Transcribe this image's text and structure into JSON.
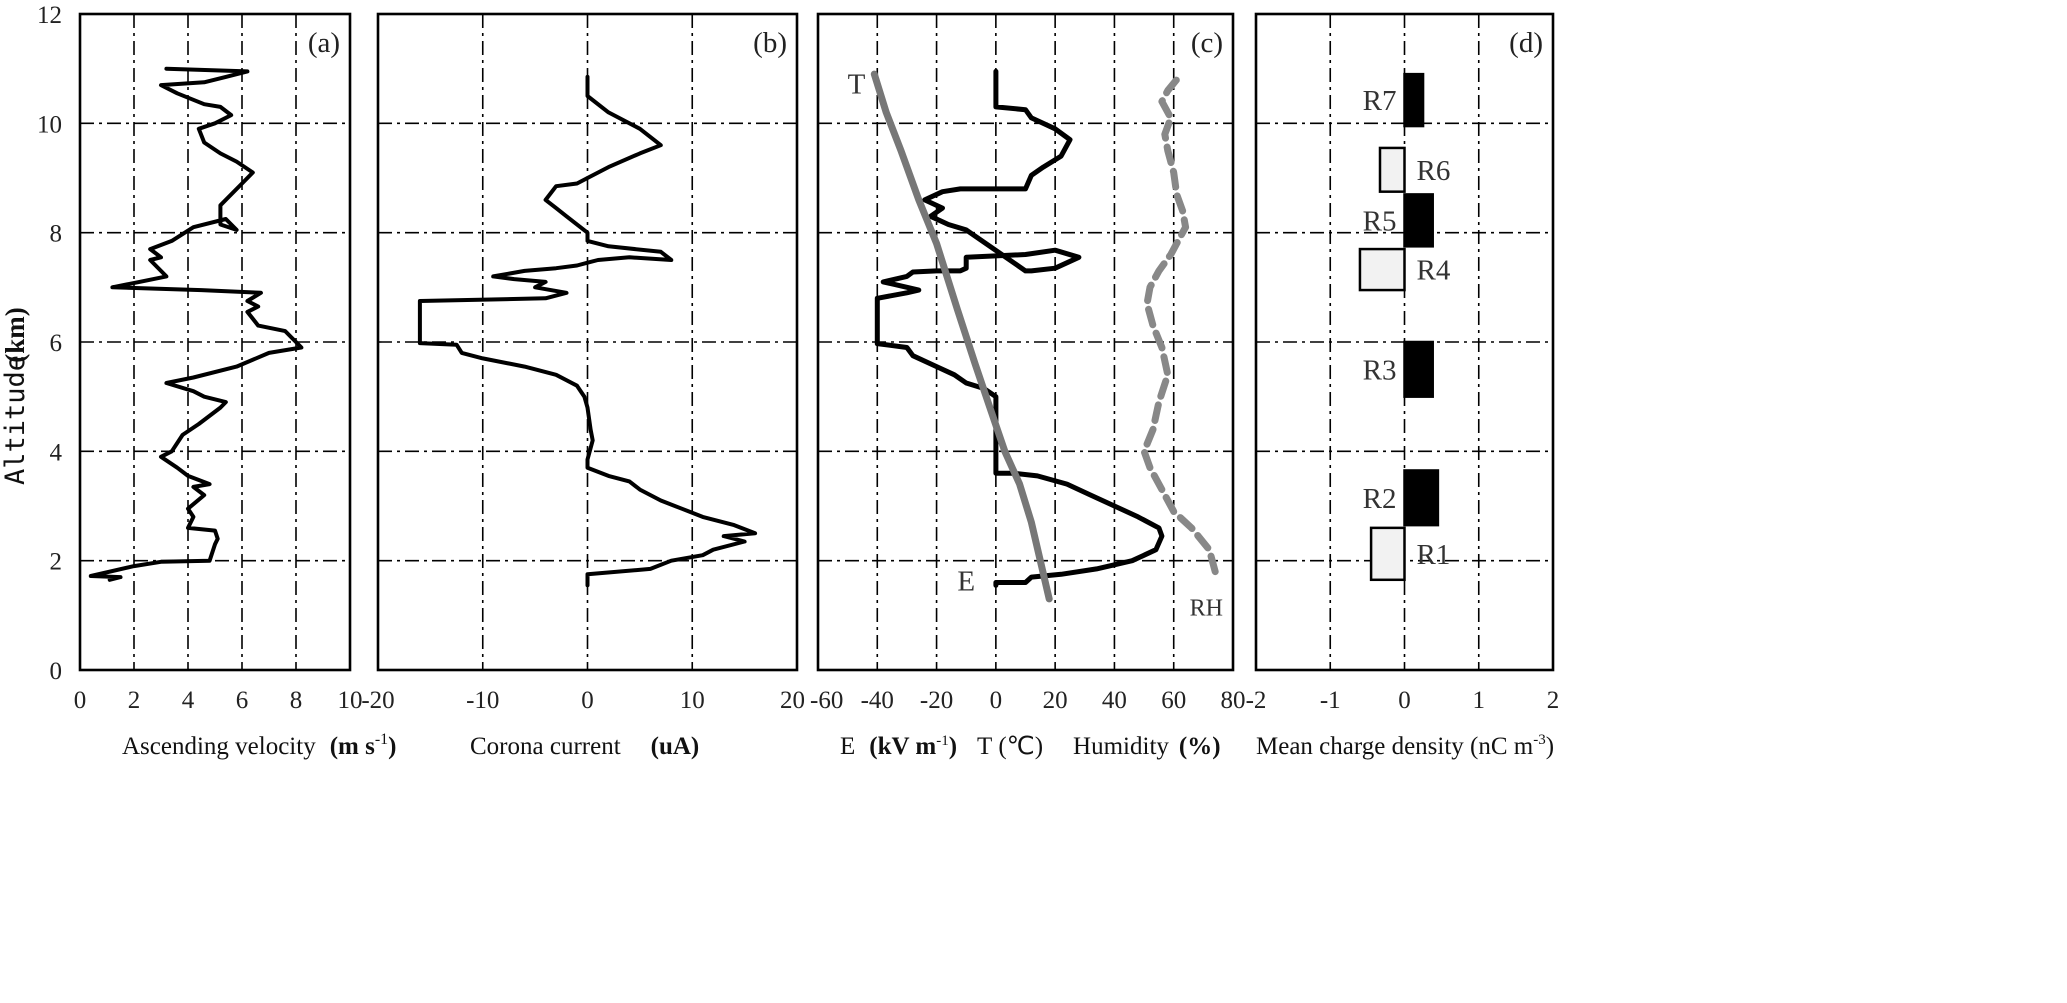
{
  "figure": {
    "y_axis_label": "Altitude",
    "y_axis_unit": "(km)",
    "y_ticks": [
      "0",
      "2",
      "4",
      "6",
      "8",
      "10",
      "12"
    ]
  },
  "chart_data": [
    {
      "panel": "a",
      "tag": "(a)",
      "type": "line",
      "xlabel": "Ascending velocity",
      "xunit_prefix": "(m s",
      "xunit_sup": "-1",
      "xunit_suffix": ")",
      "xlim": [
        0,
        10
      ],
      "ylim": [
        0,
        12
      ],
      "xticks": [
        "0",
        "2",
        "4",
        "6",
        "8",
        "10"
      ],
      "grid": true,
      "series": [
        {
          "x": [
            1.1,
            1.5,
            0.4,
            2.0,
            3.0,
            4.8,
            5.0,
            5.1,
            5.0,
            4.0,
            4.2,
            4.0,
            4.6,
            4.2,
            4.8,
            4.0,
            3.6,
            3.0,
            3.4,
            3.8,
            4.4,
            5.2,
            5.4,
            4.6,
            4.2,
            3.2,
            4.2,
            5.8,
            7.0,
            8.2,
            7.6,
            6.6,
            6.2,
            6.6,
            6.2,
            6.7,
            4.5,
            1.2,
            2.2,
            3.2,
            2.6,
            3.0,
            2.6,
            3.4,
            4.2,
            5.4,
            5.8,
            5.2,
            5.2,
            6.0,
            6.4,
            5.8,
            5.2,
            4.6,
            4.4,
            5.0,
            5.6,
            5.2,
            4.6,
            3.6,
            3.0,
            4.6,
            5.4,
            6.2,
            3.2
          ],
          "y": [
            1.65,
            1.7,
            1.72,
            1.9,
            1.98,
            2.0,
            2.3,
            2.4,
            2.55,
            2.6,
            2.8,
            2.95,
            3.2,
            3.35,
            3.4,
            3.55,
            3.7,
            3.9,
            4.0,
            4.3,
            4.5,
            4.8,
            4.9,
            5.0,
            5.1,
            5.25,
            5.35,
            5.55,
            5.8,
            5.9,
            6.2,
            6.3,
            6.55,
            6.65,
            6.75,
            6.9,
            6.95,
            7.0,
            7.1,
            7.2,
            7.5,
            7.55,
            7.7,
            7.85,
            8.1,
            8.25,
            8.05,
            8.15,
            8.5,
            8.9,
            9.1,
            9.3,
            9.45,
            9.65,
            9.9,
            10.0,
            10.15,
            10.3,
            10.35,
            10.55,
            10.7,
            10.75,
            10.85,
            10.95,
            11.0
          ]
        }
      ]
    },
    {
      "panel": "b",
      "tag": "(b)",
      "type": "line",
      "xlabel": "Corona current",
      "xunit": "(uA)",
      "xlim": [
        -20,
        20
      ],
      "ylim": [
        0,
        12
      ],
      "xticks": [
        "-20",
        "-10",
        "0",
        "10",
        "20"
      ],
      "grid": true,
      "series": [
        {
          "x": [
            0,
            0,
            6,
            8,
            11,
            12,
            15,
            13,
            16,
            14,
            11,
            9,
            7,
            5,
            4,
            2,
            0,
            0,
            0.5,
            0.3,
            0,
            -0.3,
            -1,
            -3,
            -6,
            -10,
            -12,
            -12.5,
            -16,
            -16,
            -4,
            -2,
            -5,
            -4,
            -7,
            -9,
            -6,
            -3,
            -1,
            0,
            1,
            4,
            8,
            7,
            2,
            0,
            0,
            -2,
            -3,
            -4,
            -3,
            -1,
            0,
            2,
            5,
            7,
            5,
            2,
            0,
            0
          ],
          "y": [
            1.55,
            1.75,
            1.85,
            2.0,
            2.1,
            2.2,
            2.35,
            2.45,
            2.5,
            2.65,
            2.8,
            2.95,
            3.1,
            3.3,
            3.45,
            3.55,
            3.7,
            3.85,
            4.2,
            4.4,
            4.8,
            5.0,
            5.2,
            5.4,
            5.55,
            5.7,
            5.8,
            5.95,
            5.98,
            6.75,
            6.8,
            6.9,
            7.0,
            7.1,
            7.15,
            7.2,
            7.3,
            7.35,
            7.4,
            7.45,
            7.5,
            7.55,
            7.5,
            7.65,
            7.75,
            7.85,
            8.0,
            8.3,
            8.45,
            8.6,
            8.85,
            8.9,
            9.0,
            9.2,
            9.45,
            9.6,
            9.9,
            10.2,
            10.5,
            10.85
          ]
        }
      ]
    },
    {
      "panel": "c",
      "tag": "(c)",
      "type": "line",
      "xlabel_parts": [
        "E",
        "(kV m",
        "-1",
        ")",
        "T",
        "(℃",
        ")",
        "Humidity",
        "(%)"
      ],
      "xlim": [
        -60,
        80
      ],
      "ylim": [
        0,
        12
      ],
      "xticks": [
        "-60",
        "-40",
        "-20",
        "0",
        "20",
        "40",
        "60",
        "80"
      ],
      "grid": true,
      "annotations": [
        "T",
        "E",
        "RH"
      ],
      "series": [
        {
          "name": "E",
          "color": "#000000",
          "x": [
            0,
            0,
            10,
            12,
            22,
            34,
            46,
            54,
            56,
            55,
            48,
            40,
            32,
            24,
            14,
            6,
            2,
            0,
            0,
            0,
            0,
            0,
            -4,
            -10,
            -14,
            -20,
            -28,
            -30,
            -40,
            -40,
            -30,
            -26,
            -34,
            -38,
            -30,
            -28,
            -20,
            -12,
            -10,
            -10,
            10,
            20,
            28,
            20,
            12,
            10,
            -10,
            -16,
            -22,
            -18,
            -24,
            -18,
            -12,
            -10,
            10,
            12,
            16,
            22,
            25,
            20,
            12,
            10,
            0,
            0
          ],
          "y": [
            1.55,
            1.6,
            1.6,
            1.7,
            1.75,
            1.85,
            2.0,
            2.2,
            2.45,
            2.6,
            2.8,
            3.0,
            3.2,
            3.4,
            3.55,
            3.6,
            3.6,
            3.6,
            3.8,
            4.0,
            4.5,
            5.0,
            5.15,
            5.25,
            5.4,
            5.55,
            5.75,
            5.9,
            5.97,
            6.8,
            6.9,
            6.95,
            7.05,
            7.1,
            7.2,
            7.28,
            7.3,
            7.3,
            7.35,
            7.55,
            7.6,
            7.68,
            7.55,
            7.35,
            7.3,
            7.3,
            8.05,
            8.15,
            8.3,
            8.45,
            8.6,
            8.75,
            8.8,
            8.8,
            8.8,
            9.05,
            9.2,
            9.4,
            9.7,
            9.9,
            10.1,
            10.25,
            10.3,
            10.95
          ]
        },
        {
          "name": "T",
          "color": "#777777",
          "x": [
            18,
            15,
            12,
            8,
            3,
            -2,
            -7,
            -13,
            -20,
            -26,
            -32,
            -37,
            -41
          ],
          "y": [
            1.3,
            2.0,
            2.7,
            3.4,
            4.0,
            4.8,
            5.6,
            6.6,
            7.8,
            8.6,
            9.5,
            10.2,
            10.9
          ]
        },
        {
          "name": "RH",
          "color": "#888888",
          "x": [
            74,
            72,
            66,
            60,
            56,
            52,
            50,
            53,
            55,
            58,
            56,
            53,
            51,
            52,
            55,
            59,
            62,
            64,
            63,
            61,
            60,
            58,
            57,
            59,
            56,
            58,
            61
          ],
          "y": [
            1.8,
            2.2,
            2.6,
            2.9,
            3.3,
            3.7,
            4.0,
            4.4,
            4.9,
            5.4,
            5.9,
            6.3,
            6.7,
            7.0,
            7.3,
            7.6,
            7.9,
            8.1,
            8.4,
            8.7,
            9.1,
            9.5,
            9.8,
            10.1,
            10.4,
            10.6,
            10.8
          ]
        }
      ]
    },
    {
      "panel": "d",
      "tag": "(d)",
      "type": "bar",
      "orientation": "horizontal",
      "xlabel": "Mean charge density (nC m",
      "xunit_sup": "-3",
      "xunit_suffix": ")",
      "xlim": [
        -2,
        2
      ],
      "ylim": [
        0,
        12
      ],
      "xticks": [
        "-2",
        "-1",
        "0",
        "1",
        "2"
      ],
      "grid": true,
      "positive_color": "#000000",
      "negative_color": "#f2f2f2",
      "bars": [
        {
          "label": "R1",
          "value": -0.45,
          "y_from": 1.65,
          "y_to": 2.6
        },
        {
          "label": "R2",
          "value": 0.45,
          "y_from": 2.65,
          "y_to": 3.65
        },
        {
          "label": "R3",
          "value": 0.38,
          "y_from": 5.0,
          "y_to": 6.0
        },
        {
          "label": "R4",
          "value": -0.6,
          "y_from": 6.95,
          "y_to": 7.7
        },
        {
          "label": "R5",
          "value": 0.38,
          "y_from": 7.75,
          "y_to": 8.7
        },
        {
          "label": "R6",
          "value": -0.33,
          "y_from": 8.75,
          "y_to": 9.55
        },
        {
          "label": "R7",
          "value": 0.25,
          "y_from": 9.95,
          "y_to": 10.9
        }
      ]
    }
  ]
}
